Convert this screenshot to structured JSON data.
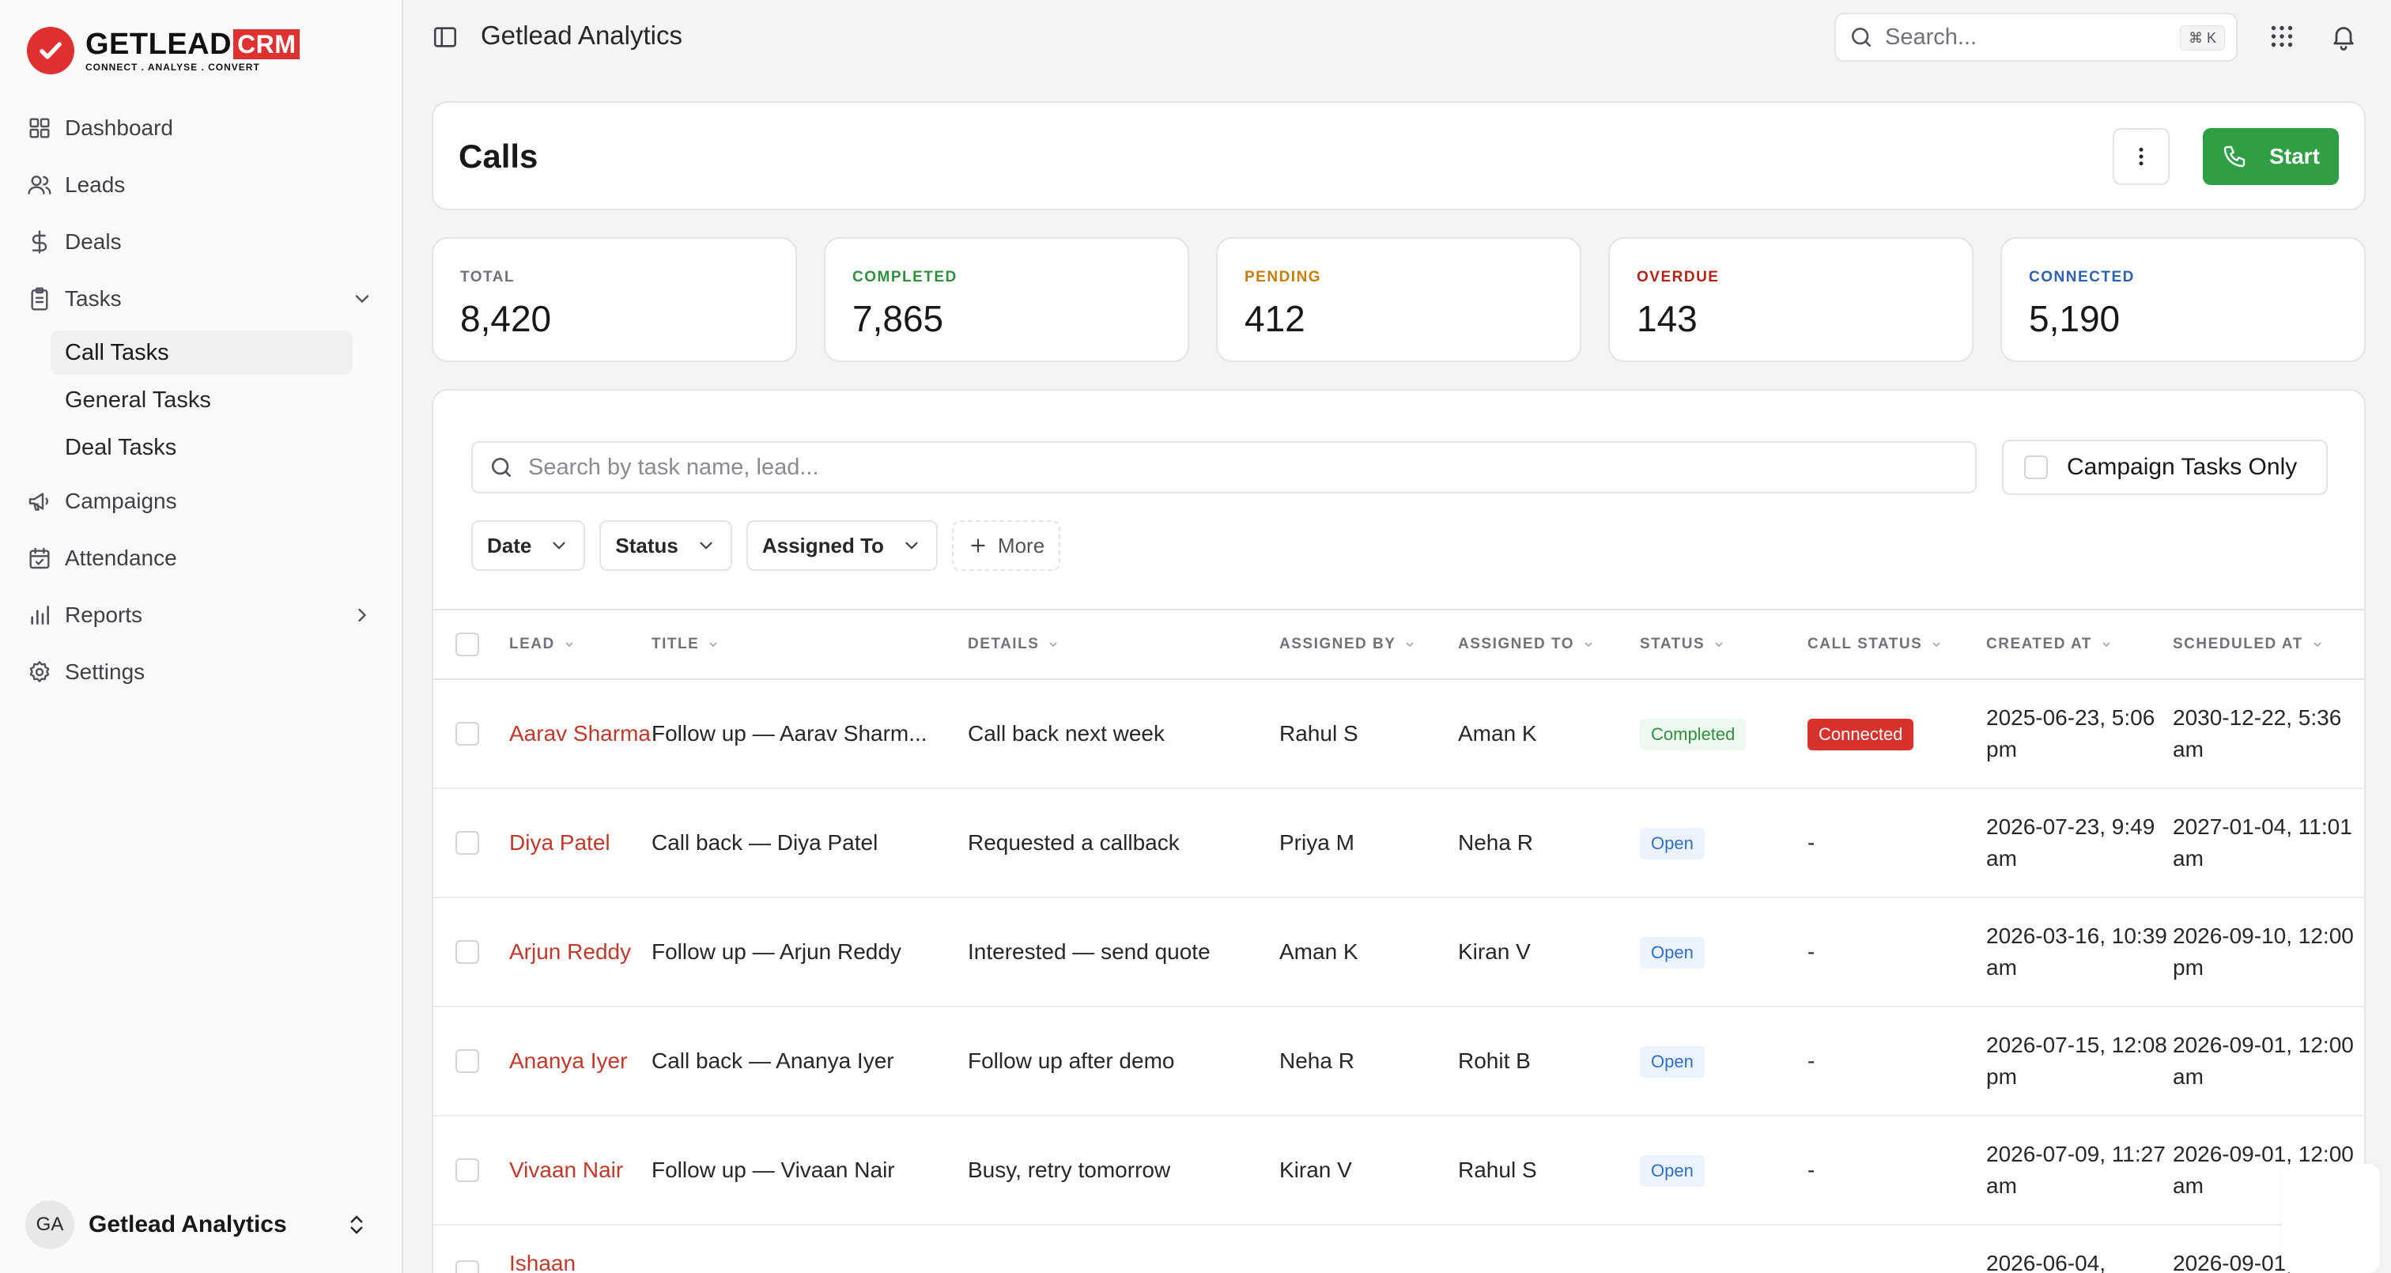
{
  "brand": {
    "name": "GETLEAD",
    "crm": "CRM",
    "tagline": "CONNECT  .  ANALYSE  .  CONVERT"
  },
  "sidebar": {
    "items": [
      {
        "label": "Dashboard",
        "icon": "grid-icon"
      },
      {
        "label": "Leads",
        "icon": "users-icon"
      },
      {
        "label": "Deals",
        "icon": "dollar-icon"
      },
      {
        "label": "Tasks",
        "icon": "clipboard-icon",
        "expanded": true
      },
      {
        "label": "Campaigns",
        "icon": "megaphone-icon"
      },
      {
        "label": "Attendance",
        "icon": "calendar-check-icon"
      },
      {
        "label": "Reports",
        "icon": "bar-chart-icon"
      },
      {
        "label": "Settings",
        "icon": "gear-icon"
      }
    ],
    "task_subitems": [
      {
        "label": "Call Tasks",
        "active": true
      },
      {
        "label": "General Tasks"
      },
      {
        "label": "Deal Tasks"
      }
    ],
    "account": {
      "initials": "GA",
      "name": "Getlead Analytics"
    }
  },
  "header": {
    "title": "Getlead Analytics",
    "search_placeholder": "Search...",
    "search_shortcut": "⌘ K"
  },
  "page": {
    "title": "Calls",
    "start_label": "Start"
  },
  "stats": [
    {
      "label": "TOTAL",
      "value": "8,420",
      "color": "#71717a"
    },
    {
      "label": "COMPLETED",
      "value": "7,865",
      "color": "#2f8f3f"
    },
    {
      "label": "PENDING",
      "value": "412",
      "color": "#c77d0a"
    },
    {
      "label": "OVERDUE",
      "value": "143",
      "color": "#b42318"
    },
    {
      "label": "CONNECTED",
      "value": "5,190",
      "color": "#2f5fb3"
    }
  ],
  "filters": {
    "search_placeholder": "Search by task name, lead...",
    "campaign_only_label": "Campaign Tasks Only",
    "buttons": [
      "Date",
      "Status",
      "Assigned To"
    ],
    "more_label": "More"
  },
  "table": {
    "columns": [
      "LEAD",
      "TITLE",
      "DETAILS",
      "ASSIGNED BY",
      "ASSIGNED TO",
      "STATUS",
      "CALL STATUS",
      "CREATED AT",
      "SCHEDULED AT"
    ],
    "rows": [
      {
        "lead": "Aarav Sharma",
        "title": "Follow up — Aarav Sharm...",
        "details": "Call back next week",
        "assigned_by": "Rahul S",
        "assigned_to": "Aman K",
        "status": "Completed",
        "call_status": "Connected",
        "created": "2025-06-23, 5:06 pm",
        "scheduled": "2030-12-22, 5:36 am"
      },
      {
        "lead": "Diya Patel",
        "title": "Call back — Diya Patel",
        "details": "Requested a callback",
        "assigned_by": "Priya M",
        "assigned_to": "Neha R",
        "status": "Open",
        "call_status": "-",
        "created": "2026-07-23, 9:49 am",
        "scheduled": "2027-01-04, 11:01 am"
      },
      {
        "lead": "Arjun Reddy",
        "title": "Follow up — Arjun Reddy",
        "details": "Interested — send quote",
        "assigned_by": "Aman K",
        "assigned_to": "Kiran V",
        "status": "Open",
        "call_status": "-",
        "created": "2026-03-16, 10:39 am",
        "scheduled": "2026-09-10, 12:00 pm"
      },
      {
        "lead": "Ananya Iyer",
        "title": "Call back — Ananya Iyer",
        "details": "Follow up after demo",
        "assigned_by": "Neha R",
        "assigned_to": "Rohit B",
        "status": "Open",
        "call_status": "-",
        "created": "2026-07-15, 12:08 pm",
        "scheduled": "2026-09-01, 12:00 am"
      },
      {
        "lead": "Vivaan Nair",
        "title": "Follow up — Vivaan Nair",
        "details": "Busy, retry tomorrow",
        "assigned_by": "Kiran V",
        "assigned_to": "Rahul S",
        "status": "Open",
        "call_status": "-",
        "created": "2026-07-09, 11:27 am",
        "scheduled": "2026-09-01, 12:00 am"
      },
      {
        "lead": "Ishaan",
        "title": "",
        "details": "",
        "assigned_by": "",
        "assigned_to": "",
        "status": "",
        "call_status": "",
        "created": "2026-06-04,",
        "scheduled": "2026-09-01,"
      }
    ]
  }
}
